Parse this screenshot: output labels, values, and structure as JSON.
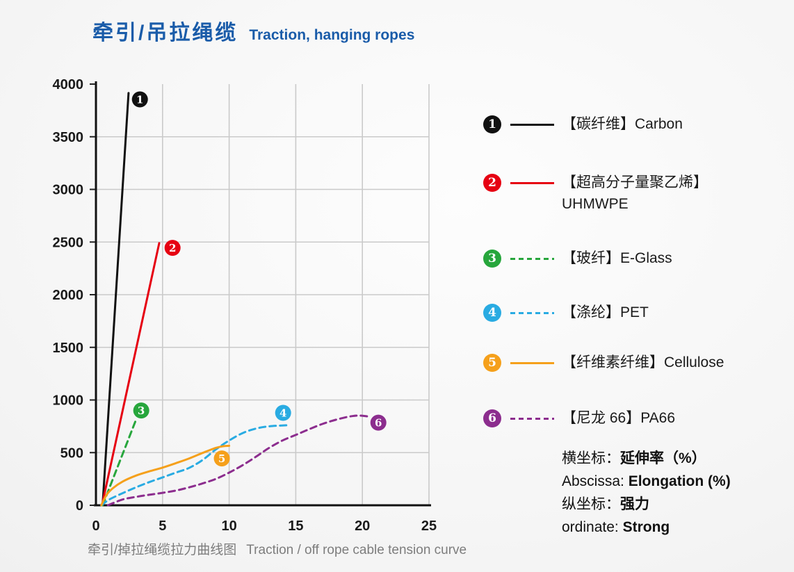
{
  "header": {
    "title_cn": "牵引/吊拉绳缆",
    "title_en": "Traction, hanging ropes"
  },
  "caption": {
    "cn": "牵引/掉拉绳缆拉力曲线图",
    "en": "Traction / off rope cable tension curve"
  },
  "axis_notes": [
    {
      "prefix": "横坐标：",
      "value": "延伸率（%）"
    },
    {
      "prefix": "Abscissa: ",
      "value": "Elongation (%)"
    },
    {
      "prefix": "纵坐标：",
      "value": "强力"
    },
    {
      "prefix": "ordinate: ",
      "value": "Strong"
    }
  ],
  "colors": {
    "title": "#1A5CA9",
    "text": "#1a1a1a",
    "caption": "#7d7d7d",
    "grid": "#cacaca",
    "axis": "#111111"
  },
  "chart_data": {
    "type": "line",
    "title": "牵引/掉拉绳缆拉力曲线图 Traction / off rope cable tension curve",
    "xlabel": "延伸率 Elongation (%)",
    "ylabel": "强力 Strong (tension)",
    "xlim": [
      0,
      25
    ],
    "ylim": [
      0,
      4000
    ],
    "x_ticks": [
      0,
      5,
      10,
      15,
      20,
      25
    ],
    "y_ticks": [
      0,
      500,
      1000,
      1500,
      2000,
      2500,
      3000,
      3500,
      4000
    ],
    "grid": true,
    "legend_position": "right",
    "series": [
      {
        "num": "1",
        "key": "carbon",
        "legend_label": "【碳纤维】Carbon",
        "legend_label2": "",
        "color": "#111111",
        "dashed": false,
        "points": [
          [
            0.5,
            0
          ],
          [
            2.45,
            3915
          ]
        ],
        "marker": {
          "x": 3.3,
          "y": 3855
        }
      },
      {
        "num": "2",
        "key": "uhmwpe",
        "legend_label": "【超高分子量聚乙烯】",
        "legend_label2": "UHMWPE",
        "color": "#E60012",
        "dashed": false,
        "points": [
          [
            0.45,
            0
          ],
          [
            4.75,
            2490
          ]
        ],
        "marker": {
          "x": 5.75,
          "y": 2445
        }
      },
      {
        "num": "3",
        "key": "eglass",
        "legend_label": "【玻纤】E-Glass",
        "legend_label2": "",
        "color": "#27A63C",
        "dashed": true,
        "points": [
          [
            0.5,
            0
          ],
          [
            3.05,
            825
          ]
        ],
        "marker": {
          "x": 3.4,
          "y": 900
        }
      },
      {
        "num": "4",
        "key": "pet",
        "legend_label": "【涤纶】PET",
        "legend_label2": "",
        "color": "#29ABE2",
        "dashed": true,
        "points": [
          [
            0.4,
            0
          ],
          [
            1,
            55
          ],
          [
            2,
            115
          ],
          [
            3,
            170
          ],
          [
            4,
            220
          ],
          [
            5,
            265
          ],
          [
            6,
            310
          ],
          [
            7,
            355
          ],
          [
            8,
            430
          ],
          [
            9,
            530
          ],
          [
            10,
            615
          ],
          [
            11,
            685
          ],
          [
            12,
            728
          ],
          [
            13,
            750
          ],
          [
            14.3,
            760
          ]
        ],
        "marker": {
          "x": 14.05,
          "y": 878
        }
      },
      {
        "num": "5",
        "key": "cellulose",
        "legend_label": "【纤维素纤维】Cellulose",
        "legend_label2": "",
        "color": "#F5A01B",
        "dashed": false,
        "points": [
          [
            0.4,
            0
          ],
          [
            0.8,
            100
          ],
          [
            1.3,
            165
          ],
          [
            2,
            225
          ],
          [
            3,
            282
          ],
          [
            4,
            322
          ],
          [
            5,
            358
          ],
          [
            6,
            400
          ],
          [
            7,
            445
          ],
          [
            8,
            497
          ],
          [
            9,
            545
          ],
          [
            9.6,
            562
          ],
          [
            10,
            565
          ]
        ],
        "marker": {
          "x": 9.45,
          "y": 445
        }
      },
      {
        "num": "6",
        "key": "pa66",
        "legend_label": "【尼龙 66】PA66",
        "legend_label2": "",
        "color": "#8C2D8E",
        "dashed": true,
        "points": [
          [
            0.9,
            0
          ],
          [
            2,
            55
          ],
          [
            3,
            80
          ],
          [
            4,
            100
          ],
          [
            5,
            118
          ],
          [
            6,
            140
          ],
          [
            7,
            170
          ],
          [
            8,
            207
          ],
          [
            9,
            250
          ],
          [
            10,
            310
          ],
          [
            11,
            380
          ],
          [
            12,
            460
          ],
          [
            13,
            545
          ],
          [
            14,
            615
          ],
          [
            15,
            668
          ],
          [
            16,
            722
          ],
          [
            17,
            772
          ],
          [
            18,
            812
          ],
          [
            19,
            842
          ],
          [
            19.8,
            852
          ],
          [
            20.6,
            840
          ]
        ],
        "marker": {
          "x": 21.2,
          "y": 785
        }
      }
    ]
  }
}
